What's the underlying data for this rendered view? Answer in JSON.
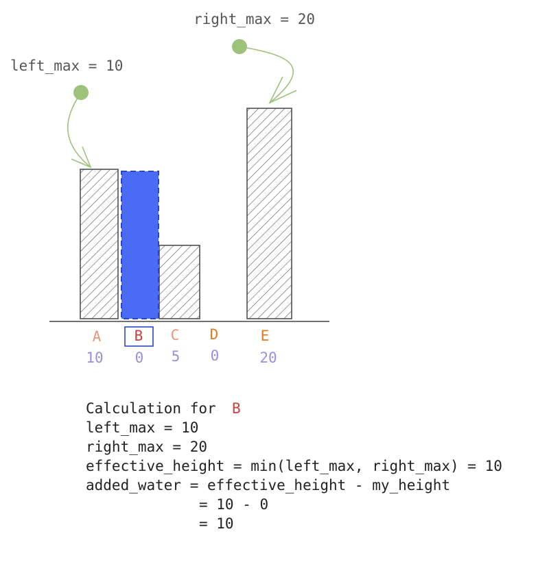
{
  "annotations": {
    "left_max": "left_max = 10",
    "right_max": "right_max = 20"
  },
  "bars": [
    {
      "label": "A",
      "value": 10
    },
    {
      "label": "B",
      "value": 0
    },
    {
      "label": "C",
      "value": 5
    },
    {
      "label": "D",
      "value": 0
    },
    {
      "label": "E",
      "value": 20
    }
  ],
  "calculation": {
    "title": "Calculation for",
    "highlight": "B",
    "lines": [
      "left_max = 10",
      "right_max = 20",
      "effective_height = min(left_max, right_max) = 10",
      "added_water = effective_height - my_height",
      "= 10 - 0",
      "= 10"
    ]
  }
}
